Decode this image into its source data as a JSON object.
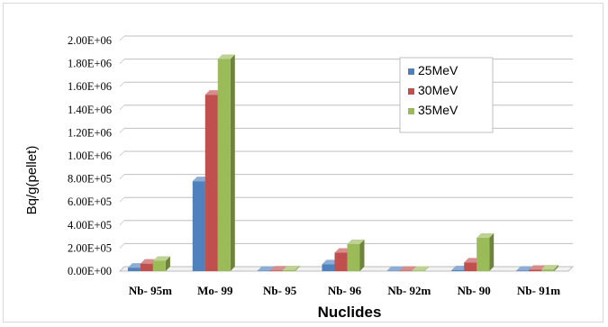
{
  "chart_data": {
    "type": "bar",
    "title": "",
    "xlabel": "Nuclides",
    "ylabel": "Bq/g(pellet)",
    "categories": [
      "Nb- 95m",
      "Mo- 99",
      "Nb- 95",
      "Nb- 96",
      "Nb- 92m",
      "Nb- 90",
      "Nb- 91m"
    ],
    "series": [
      {
        "name": "25MeV",
        "color": "#4f81bd",
        "values": [
          30000,
          780000,
          3000,
          60000,
          2000,
          8000,
          4000
        ]
      },
      {
        "name": "30MeV",
        "color": "#c0504d",
        "values": [
          65000,
          1530000,
          6000,
          160000,
          3000,
          75000,
          12000
        ]
      },
      {
        "name": "35MeV",
        "color": "#9bbb59",
        "values": [
          90000,
          1840000,
          8000,
          235000,
          4000,
          290000,
          15000
        ]
      }
    ],
    "ylim": [
      0,
      2000000
    ],
    "y_ticks": [
      0,
      200000,
      400000,
      600000,
      800000,
      1000000,
      1200000,
      1400000,
      1600000,
      1800000,
      2000000
    ],
    "y_tick_labels": [
      "0.00E+00",
      "2.00E+05",
      "4.00E+05",
      "6.00E+05",
      "8.00E+05",
      "1.00E+06",
      "1.20E+06",
      "1.40E+06",
      "1.60E+06",
      "1.80E+06",
      "2.00E+06"
    ],
    "grid": true,
    "legend_position": "top-right",
    "style": "3d-clustered-column"
  }
}
